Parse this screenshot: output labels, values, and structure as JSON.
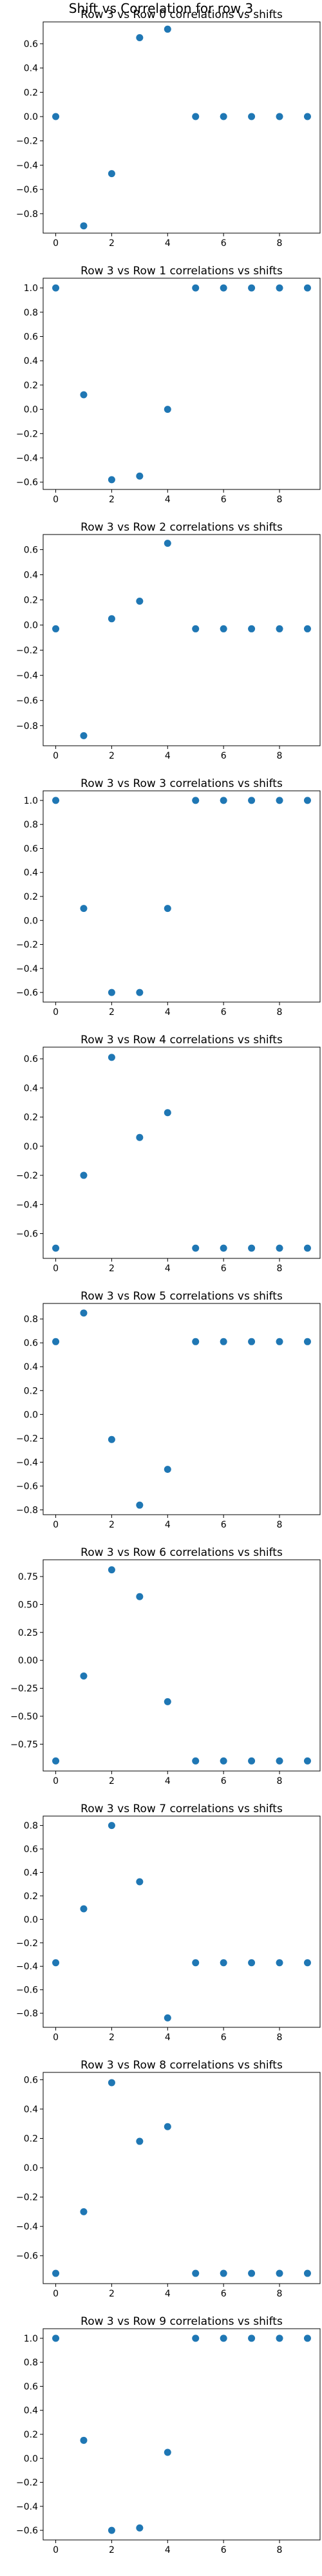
{
  "figure": {
    "suptitle": "Shift vs Correlation for row 3",
    "marker_color": "#1f77b4"
  },
  "chart_data": [
    {
      "type": "scatter",
      "title": "Row 3 vs Row 0 correlations vs shifts",
      "x": [
        0,
        1,
        2,
        3,
        4,
        5,
        6,
        7,
        8,
        9
      ],
      "y": [
        0.0,
        -0.9,
        -0.47,
        0.65,
        0.72,
        0.0,
        0.0,
        0.0,
        0.0,
        0.0
      ],
      "xlim": [
        -0.45,
        9.45
      ],
      "ylim": [
        -0.96,
        0.78
      ],
      "xticks": [
        0,
        2,
        4,
        6,
        8
      ],
      "yticks": [
        0.6,
        0.4,
        0.2,
        0.0,
        -0.2,
        -0.4,
        -0.6,
        -0.8
      ],
      "yticklabels": [
        "0.6",
        "0.4",
        "0.2",
        "0.0",
        "−0.2",
        "−0.4",
        "−0.6",
        "−0.8"
      ]
    },
    {
      "type": "scatter",
      "title": "Row 3 vs Row 1 correlations vs shifts",
      "x": [
        0,
        1,
        2,
        3,
        4,
        5,
        6,
        7,
        8,
        9
      ],
      "y": [
        1.0,
        0.12,
        -0.58,
        -0.55,
        0.0,
        1.0,
        1.0,
        1.0,
        1.0,
        1.0
      ],
      "xlim": [
        -0.45,
        9.45
      ],
      "ylim": [
        -0.66,
        1.08
      ],
      "xticks": [
        0,
        2,
        4,
        6,
        8
      ],
      "yticks": [
        1.0,
        0.8,
        0.6,
        0.4,
        0.2,
        0.0,
        -0.2,
        -0.4,
        -0.6
      ],
      "yticklabels": [
        "1.0",
        "0.8",
        "0.6",
        "0.4",
        "0.2",
        "0.0",
        "−0.2",
        "−0.4",
        "−0.6"
      ]
    },
    {
      "type": "scatter",
      "title": "Row 3 vs Row 2 correlations vs shifts",
      "x": [
        0,
        1,
        2,
        3,
        4,
        5,
        6,
        7,
        8,
        9
      ],
      "y": [
        -0.03,
        -0.88,
        0.05,
        0.19,
        0.65,
        -0.03,
        -0.03,
        -0.03,
        -0.03,
        -0.03
      ],
      "xlim": [
        -0.45,
        9.45
      ],
      "ylim": [
        -0.96,
        0.72
      ],
      "xticks": [
        0,
        2,
        4,
        6,
        8
      ],
      "yticks": [
        0.6,
        0.4,
        0.2,
        0.0,
        -0.2,
        -0.4,
        -0.6,
        -0.8
      ],
      "yticklabels": [
        "0.6",
        "0.4",
        "0.2",
        "0.0",
        "−0.2",
        "−0.4",
        "−0.6",
        "−0.8"
      ]
    },
    {
      "type": "scatter",
      "title": "Row 3 vs Row 3 correlations vs shifts",
      "x": [
        0,
        1,
        2,
        3,
        4,
        5,
        6,
        7,
        8,
        9
      ],
      "y": [
        1.0,
        0.1,
        -0.6,
        -0.6,
        0.1,
        1.0,
        1.0,
        1.0,
        1.0,
        1.0
      ],
      "xlim": [
        -0.45,
        9.45
      ],
      "ylim": [
        -0.68,
        1.08
      ],
      "xticks": [
        0,
        2,
        4,
        6,
        8
      ],
      "yticks": [
        1.0,
        0.8,
        0.6,
        0.4,
        0.2,
        0.0,
        -0.2,
        -0.4,
        -0.6
      ],
      "yticklabels": [
        "1.0",
        "0.8",
        "0.6",
        "0.4",
        "0.2",
        "0.0",
        "−0.2",
        "−0.4",
        "−0.6"
      ]
    },
    {
      "type": "scatter",
      "title": "Row 3 vs Row 4 correlations vs shifts",
      "x": [
        0,
        1,
        2,
        3,
        4,
        5,
        6,
        7,
        8,
        9
      ],
      "y": [
        -0.7,
        -0.2,
        0.61,
        0.06,
        0.23,
        -0.7,
        -0.7,
        -0.7,
        -0.7,
        -0.7
      ],
      "xlim": [
        -0.45,
        9.45
      ],
      "ylim": [
        -0.77,
        0.68
      ],
      "xticks": [
        0,
        2,
        4,
        6,
        8
      ],
      "yticks": [
        0.6,
        0.4,
        0.2,
        0.0,
        -0.2,
        -0.4,
        -0.6
      ],
      "yticklabels": [
        "0.6",
        "0.4",
        "0.2",
        "0.0",
        "−0.2",
        "−0.4",
        "−0.6"
      ]
    },
    {
      "type": "scatter",
      "title": "Row 3 vs Row 5 correlations vs shifts",
      "x": [
        0,
        1,
        2,
        3,
        4,
        5,
        6,
        7,
        8,
        9
      ],
      "y": [
        0.61,
        0.85,
        -0.21,
        -0.76,
        -0.46,
        0.61,
        0.61,
        0.61,
        0.61,
        0.61
      ],
      "xlim": [
        -0.45,
        9.45
      ],
      "ylim": [
        -0.84,
        0.93
      ],
      "xticks": [
        0,
        2,
        4,
        6,
        8
      ],
      "yticks": [
        0.8,
        0.6,
        0.4,
        0.2,
        0.0,
        -0.2,
        -0.4,
        -0.6,
        -0.8
      ],
      "yticklabels": [
        "0.8",
        "0.6",
        "0.4",
        "0.2",
        "0.0",
        "−0.2",
        "−0.4",
        "−0.6",
        "−0.8"
      ]
    },
    {
      "type": "scatter",
      "title": "Row 3 vs Row 6 correlations vs shifts",
      "x": [
        0,
        1,
        2,
        3,
        4,
        5,
        6,
        7,
        8,
        9
      ],
      "y": [
        -0.9,
        -0.14,
        0.81,
        0.57,
        -0.37,
        -0.9,
        -0.9,
        -0.9,
        -0.9,
        -0.9
      ],
      "xlim": [
        -0.45,
        9.45
      ],
      "ylim": [
        -0.99,
        0.9
      ],
      "xticks": [
        0,
        2,
        4,
        6,
        8
      ],
      "yticks": [
        0.75,
        0.5,
        0.25,
        0.0,
        -0.25,
        -0.5,
        -0.75
      ],
      "yticklabels": [
        "0.75",
        "0.50",
        "0.25",
        "0.00",
        "−0.25",
        "−0.50",
        "−0.75"
      ]
    },
    {
      "type": "scatter",
      "title": "Row 3 vs Row 7 correlations vs shifts",
      "x": [
        0,
        1,
        2,
        3,
        4,
        5,
        6,
        7,
        8,
        9
      ],
      "y": [
        -0.37,
        0.09,
        0.8,
        0.32,
        -0.84,
        -0.37,
        -0.37,
        -0.37,
        -0.37,
        -0.37
      ],
      "xlim": [
        -0.45,
        9.45
      ],
      "ylim": [
        -0.92,
        0.88
      ],
      "xticks": [
        0,
        2,
        4,
        6,
        8
      ],
      "yticks": [
        0.8,
        0.6,
        0.4,
        0.2,
        0.0,
        -0.2,
        -0.4,
        -0.6,
        -0.8
      ],
      "yticklabels": [
        "0.8",
        "0.6",
        "0.4",
        "0.2",
        "0.0",
        "−0.2",
        "−0.4",
        "−0.6",
        "−0.8"
      ]
    },
    {
      "type": "scatter",
      "title": "Row 3 vs Row 8 correlations vs shifts",
      "x": [
        0,
        1,
        2,
        3,
        4,
        5,
        6,
        7,
        8,
        9
      ],
      "y": [
        -0.72,
        -0.3,
        0.58,
        0.18,
        0.28,
        -0.72,
        -0.72,
        -0.72,
        -0.72,
        -0.72
      ],
      "xlim": [
        -0.45,
        9.45
      ],
      "ylim": [
        -0.79,
        0.65
      ],
      "xticks": [
        0,
        2,
        4,
        6,
        8
      ],
      "yticks": [
        0.6,
        0.4,
        0.2,
        0.0,
        -0.2,
        -0.4,
        -0.6
      ],
      "yticklabels": [
        "0.6",
        "0.4",
        "0.2",
        "0.0",
        "−0.2",
        "−0.4",
        "−0.6"
      ]
    },
    {
      "type": "scatter",
      "title": "Row 3 vs Row 9 correlations vs shifts",
      "x": [
        0,
        1,
        2,
        3,
        4,
        5,
        6,
        7,
        8,
        9
      ],
      "y": [
        1.0,
        0.15,
        -0.6,
        -0.58,
        0.05,
        1.0,
        1.0,
        1.0,
        1.0,
        1.0
      ],
      "xlim": [
        -0.45,
        9.45
      ],
      "ylim": [
        -0.68,
        1.08
      ],
      "xticks": [
        0,
        2,
        4,
        6,
        8
      ],
      "yticks": [
        1.0,
        0.8,
        0.6,
        0.4,
        0.2,
        0.0,
        -0.2,
        -0.4,
        -0.6
      ],
      "yticklabels": [
        "1.0",
        "0.8",
        "0.6",
        "0.4",
        "0.2",
        "0.0",
        "−0.2",
        "−0.4",
        "−0.6"
      ]
    }
  ]
}
